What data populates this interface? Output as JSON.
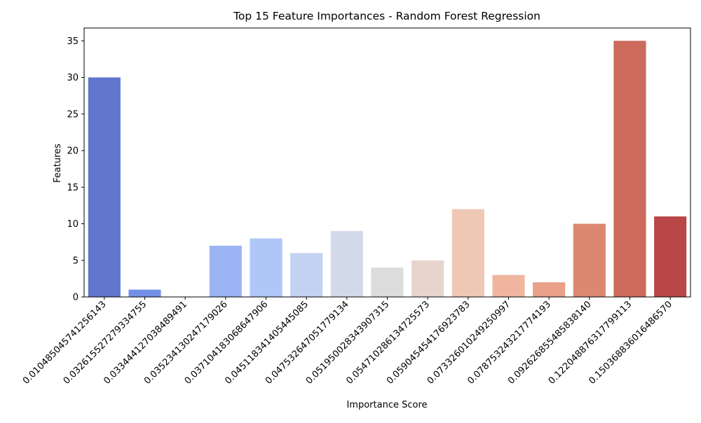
{
  "chart_data": {
    "type": "bar",
    "title": "Top 15 Feature Importances - Random Forest Regression",
    "xlabel": "Importance Score",
    "ylabel": "Features",
    "ylim": [
      0,
      36.75
    ],
    "yticks": [
      0,
      5,
      10,
      15,
      20,
      25,
      30,
      35
    ],
    "grid": false,
    "categories": [
      "0.010485045741256143",
      "0.032615527279334755",
      "0.033444127038489491",
      "0.035234130247179026",
      "0.037104183068647906",
      "0.045118341405445085",
      "0.047532647051779134",
      "0.051950028343907315",
      "0.054710286134725573",
      "0.059045454176923783",
      "0.073326010249250997",
      "0.078753243217774193",
      "0.092626855485838140",
      "0.122048876317799113",
      "0.150368836016486570"
    ],
    "values": [
      30,
      1,
      0,
      7,
      8,
      6,
      9,
      4,
      5,
      12,
      3,
      2,
      10,
      35,
      11
    ],
    "colors": [
      "#6176cc",
      "#7390e8",
      "#88a5f3",
      "#9bb5f4",
      "#afc6f7",
      "#c2d2f2",
      "#d2daea",
      "#dcdcdc",
      "#e7d5cd",
      "#efc8b5",
      "#f0b59e",
      "#e9a088",
      "#dc8870",
      "#cc6a5c",
      "#b94747"
    ]
  }
}
